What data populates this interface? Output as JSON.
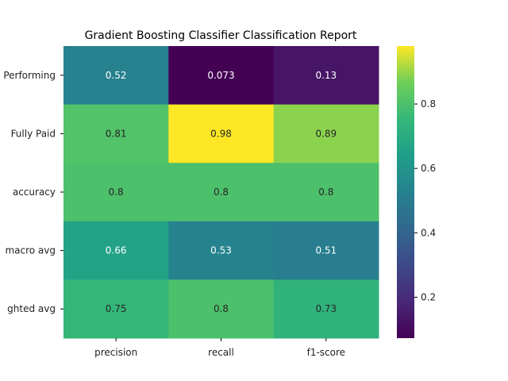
{
  "chart_data": {
    "type": "heatmap",
    "title": "Gradient Boosting Classifier Classification Report",
    "columns": [
      "precision",
      "recall",
      "f1-score"
    ],
    "rows": [
      "Performing",
      "Fully Paid",
      "accuracy",
      "macro avg",
      "ghted avg"
    ],
    "values": [
      [
        0.52,
        0.073,
        0.13
      ],
      [
        0.81,
        0.98,
        0.89
      ],
      [
        0.8,
        0.8,
        0.8
      ],
      [
        0.66,
        0.53,
        0.51
      ],
      [
        0.75,
        0.8,
        0.73
      ]
    ],
    "annotations": [
      [
        "0.52",
        "0.073",
        "0.13"
      ],
      [
        "0.81",
        "0.98",
        "0.89"
      ],
      [
        "0.8",
        "0.8",
        "0.8"
      ],
      [
        "0.66",
        "0.53",
        "0.51"
      ],
      [
        "0.75",
        "0.8",
        "0.73"
      ]
    ],
    "colormap": "viridis",
    "vmin": 0.073,
    "vmax": 0.98,
    "colorbar_ticks": [
      0.2,
      0.4,
      0.6,
      0.8
    ],
    "colorbar_tick_labels": [
      "0.2",
      "0.4",
      "0.6",
      "0.8"
    ],
    "legend_position": "right"
  }
}
